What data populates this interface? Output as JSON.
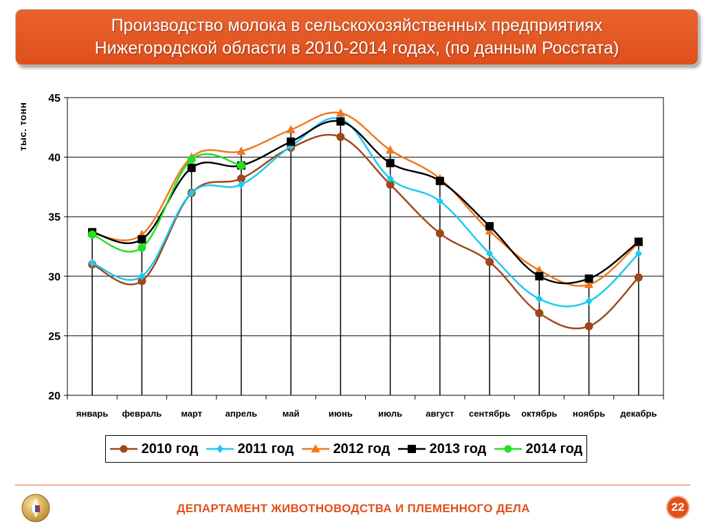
{
  "title": {
    "line1": "Производство молока в сельскохозяйственных предприятиях",
    "line2": "Нижегородской области в 2010-2014 годах, (по данным Росстата)"
  },
  "footer": {
    "department": "ДЕПАРТАМЕНТ ЖИВОТНОВОДСТВА И ПЛЕМЕННОГО ДЕЛА",
    "page_number": "22"
  },
  "chart_data": {
    "type": "line",
    "title": "Производство молока в сельскохозяйственных предприятиях Нижегородской области в 2010-2014 годах, (по данным Росстата)",
    "xlabel": "",
    "ylabel": "тыс. тонн",
    "ylim": [
      20,
      45
    ],
    "yticks": [
      20,
      25,
      30,
      35,
      40,
      45
    ],
    "grid": "horizontal major gridlines",
    "legend_position": "bottom",
    "smooth": true,
    "categories": [
      "январь",
      "февраль",
      "март",
      "апрель",
      "май",
      "июнь",
      "июль",
      "август",
      "сентябрь",
      "октябрь",
      "ноябрь",
      "декабрь"
    ],
    "series": [
      {
        "name": "2010 год",
        "color": "#a0461b",
        "marker": "circle",
        "values": [
          31.0,
          29.6,
          37.0,
          38.2,
          40.8,
          41.7,
          37.7,
          33.6,
          31.2,
          26.9,
          25.8,
          29.9
        ]
      },
      {
        "name": "2011 год",
        "color": "#1ec8f0",
        "marker": "diamond",
        "values": [
          31.1,
          30.0,
          37.0,
          37.7,
          40.9,
          43.2,
          38.2,
          36.3,
          31.9,
          28.1,
          27.9,
          31.9
        ]
      },
      {
        "name": "2012 год",
        "color": "#f0781e",
        "marker": "triangle",
        "values": [
          33.6,
          33.5,
          40.0,
          40.5,
          42.3,
          43.7,
          40.6,
          38.2,
          33.8,
          30.5,
          29.3,
          32.8
        ]
      },
      {
        "name": "2013 год",
        "color": "#000000",
        "marker": "square",
        "values": [
          33.7,
          33.1,
          39.1,
          39.3,
          41.3,
          43.0,
          39.5,
          38.0,
          34.2,
          30.0,
          29.8,
          32.9
        ]
      },
      {
        "name": "2014 год",
        "color": "#22e022",
        "marker": "circle",
        "values": [
          33.5,
          32.4,
          39.8,
          39.3,
          null,
          null,
          null,
          null,
          null,
          null,
          null,
          null
        ]
      }
    ]
  }
}
